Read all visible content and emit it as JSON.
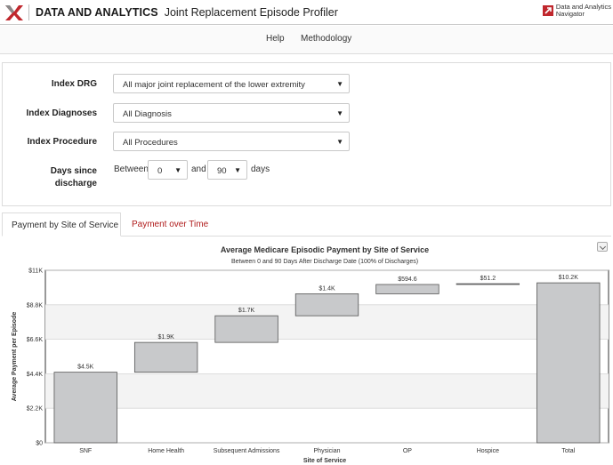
{
  "header": {
    "brand": "DATA AND ANALYTICS",
    "title": "Joint Replacement Episode Profiler",
    "navigator_line1": "Data and Analytics",
    "navigator_line2": "Navigator",
    "logo_icon": "chevron-x-logo-icon",
    "accent_color": "#c0272d"
  },
  "menu": {
    "help": "Help",
    "methodology": "Methodology"
  },
  "filters": {
    "drg": {
      "label": "Index DRG",
      "value": "All major joint replacement of the lower extremity"
    },
    "diagnoses": {
      "label": "Index Diagnoses",
      "value": "All Diagnosis"
    },
    "procedure": {
      "label": "Index Procedure",
      "value": "All Procedures"
    },
    "days": {
      "label_line1": "Days since",
      "label_line2": "discharge",
      "between": "Between",
      "from": "0",
      "and": "and",
      "to": "90",
      "unit": "days"
    }
  },
  "tabs": {
    "site": "Payment by Site of Service",
    "time": "Payment over Time"
  },
  "chart_data": {
    "type": "bar",
    "subtype": "waterfall",
    "title": "Average Medicare Episodic Payment by Site of Service",
    "subtitle": "Between 0 and 90 Days After Discharge Date (100% of Discharges)",
    "xlabel": "Site of Service",
    "ylabel": "Average Payment per Episode",
    "ylim": [
      0,
      11000
    ],
    "yticks": [
      0,
      2200,
      4400,
      6600,
      8800,
      11000
    ],
    "ytick_labels": [
      "$0",
      "$2.2K",
      "$4.4K",
      "$6.6K",
      "$8.8K",
      "$11K"
    ],
    "categories": [
      "SNF",
      "Home Health",
      "Subsequent Admissions",
      "Physician",
      "OP",
      "Hospice",
      "Total"
    ],
    "values": [
      4500,
      1900,
      1700,
      1400,
      594.6,
      51.2,
      10200
    ],
    "bar_labels": [
      "$4.5K",
      "$1.9K",
      "$1.7K",
      "$1.4K",
      "$594.6",
      "$51.2",
      "$10.2K"
    ],
    "bar_color": "#c8c9cb",
    "bar_stroke": "#555555",
    "grid": true
  }
}
